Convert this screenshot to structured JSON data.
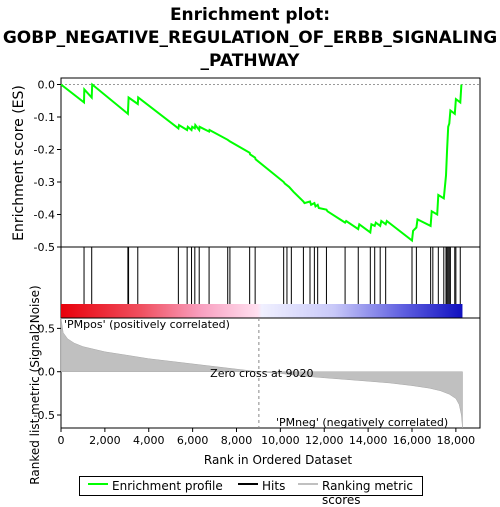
{
  "title_lines": [
    "Enrichment plot:",
    "GOBP_NEGATIVE_REGULATION_OF_ERBB_SIGNALING",
    "_PATHWAY"
  ],
  "chart_data": {
    "type": "line",
    "es_panel": {
      "ylabel": "Enrichment score (ES)",
      "yticks": [
        "0.0",
        "-0.1",
        "-0.2",
        "-0.3",
        "-0.4",
        "-0.5"
      ],
      "ytick_values": [
        0.0,
        -0.1,
        -0.2,
        -0.3,
        -0.4,
        -0.5
      ],
      "ylim": [
        -0.5,
        0.02
      ],
      "series": [
        {
          "name": "Enrichment profile",
          "color": "#00ff00",
          "x": [
            0,
            1050,
            1060,
            1400,
            1420,
            3050,
            3080,
            3500,
            3520,
            5350,
            5380,
            5750,
            5780,
            5950,
            5980,
            6100,
            6120,
            6300,
            6320,
            6750,
            6770,
            7600,
            7700,
            8600,
            8620,
            8850,
            8870,
            10150,
            10200,
            10400,
            10600,
            11050,
            11100,
            11350,
            11400,
            11550,
            11600,
            11700,
            11750,
            12100,
            12150,
            12950,
            13000,
            13550,
            13600,
            14100,
            14150,
            14300,
            14350,
            14550,
            14600,
            14800,
            14850,
            16000,
            16050,
            16200,
            16250,
            16850,
            16900,
            17150,
            17200,
            17450,
            17550,
            17600,
            17650,
            17700,
            17750,
            17950,
            18000,
            18200,
            18250
          ],
          "y": [
            0.0,
            -0.055,
            -0.015,
            -0.04,
            0.0,
            -0.09,
            -0.04,
            -0.06,
            -0.04,
            -0.135,
            -0.125,
            -0.14,
            -0.13,
            -0.14,
            -0.13,
            -0.135,
            -0.125,
            -0.14,
            -0.13,
            -0.145,
            -0.14,
            -0.17,
            -0.175,
            -0.21,
            -0.215,
            -0.225,
            -0.23,
            -0.3,
            -0.305,
            -0.315,
            -0.33,
            -0.36,
            -0.365,
            -0.36,
            -0.37,
            -0.365,
            -0.375,
            -0.37,
            -0.38,
            -0.385,
            -0.39,
            -0.425,
            -0.42,
            -0.445,
            -0.43,
            -0.455,
            -0.43,
            -0.435,
            -0.425,
            -0.435,
            -0.42,
            -0.43,
            -0.42,
            -0.48,
            -0.45,
            -0.44,
            -0.415,
            -0.435,
            -0.39,
            -0.4,
            -0.34,
            -0.35,
            -0.28,
            -0.2,
            -0.13,
            -0.12,
            -0.08,
            -0.09,
            -0.045,
            -0.055,
            0.0
          ]
        }
      ]
    },
    "hits_panel": {
      "hit_positions": [
        1050,
        1400,
        3050,
        3080,
        3500,
        5350,
        5750,
        5950,
        6100,
        6300,
        6750,
        7600,
        7700,
        8600,
        8850,
        10150,
        10300,
        10500,
        11050,
        11350,
        11550,
        11700,
        12100,
        12950,
        13550,
        14100,
        14300,
        14550,
        14800,
        16000,
        16200,
        16850,
        16950,
        17200,
        17450,
        17550,
        17600,
        17650,
        17700,
        17750,
        17950,
        18000,
        18200
      ]
    },
    "metric_panel": {
      "ylabel": "Ranked list metric (Signal2Noise)",
      "yticks": [
        "0.5",
        "0.0",
        "-0.5"
      ],
      "ytick_values": [
        0.5,
        0.0,
        -0.5
      ],
      "ylim": [
        -0.65,
        0.62
      ],
      "zero_cross_label": "Zero cross at 9020",
      "zero_cross": 9020,
      "pos_label": "'PMpos' (positively correlated)",
      "neg_label": "'PMneg' (negatively correlated)",
      "profile_x": [
        0,
        100,
        300,
        600,
        1000,
        2000,
        3000,
        4000,
        5000,
        6000,
        7000,
        8000,
        9020,
        10000,
        11000,
        12000,
        13000,
        14000,
        15000,
        16000,
        16800,
        17300,
        17700,
        18000,
        18150,
        18250,
        18300
      ],
      "profile_y": [
        0.62,
        0.45,
        0.38,
        0.33,
        0.29,
        0.23,
        0.19,
        0.15,
        0.12,
        0.09,
        0.06,
        0.03,
        0.0,
        -0.02,
        -0.05,
        -0.07,
        -0.09,
        -0.11,
        -0.13,
        -0.16,
        -0.19,
        -0.22,
        -0.26,
        -0.31,
        -0.38,
        -0.5,
        -0.65
      ]
    },
    "xaxis": {
      "xlabel": "Rank in Ordered Dataset",
      "xticks": [
        "0",
        "2,000",
        "4,000",
        "6,000",
        "8,000",
        "10,000",
        "12,000",
        "14,000",
        "16,000",
        "18,000"
      ],
      "xtick_values": [
        0,
        2000,
        4000,
        6000,
        8000,
        10000,
        12000,
        14000,
        16000,
        18000
      ],
      "xlim": [
        0,
        19100
      ]
    },
    "legend": {
      "placement": "bottom",
      "entries": [
        {
          "label": "Enrichment profile",
          "color": "#00ff00"
        },
        {
          "label": "Hits",
          "color": "#000000"
        },
        {
          "label": "Ranking metric scores",
          "color": "#c0c0c0"
        }
      ]
    }
  }
}
